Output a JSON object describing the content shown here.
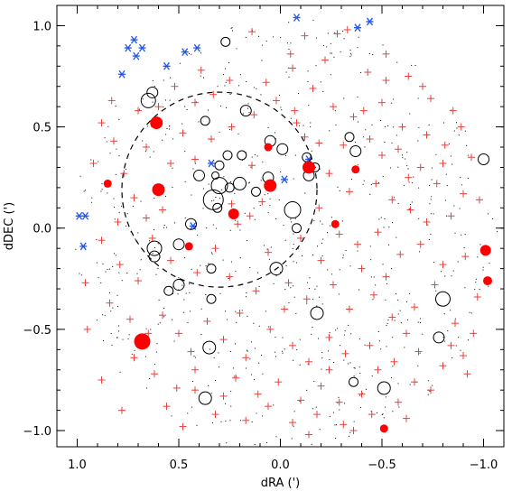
{
  "chart_data": {
    "type": "scatter",
    "title": "",
    "xlabel": "dRA (')",
    "ylabel": "dDEC (')",
    "xlim": [
      1.1,
      -1.1
    ],
    "ylim": [
      -1.08,
      1.1
    ],
    "x_ticks": [
      1.0,
      0.5,
      0.0,
      -0.5,
      -1.0
    ],
    "x_tick_labels": [
      "1.0",
      "0.5",
      "0.0",
      "−0.5",
      "−1.0"
    ],
    "y_ticks": [
      -1.0,
      -0.5,
      0.0,
      0.5,
      1.0
    ],
    "y_tick_labels": [
      "−1.0",
      "−0.5",
      "0.0",
      "0.5",
      "1.0"
    ],
    "grid": false,
    "legend": "none",
    "dashed_circle": {
      "center": [
        0.3,
        0.19
      ],
      "radius": 0.48
    },
    "colors": {
      "filled": "#ff0000",
      "plus": "#e8413b",
      "star": "#2255ee",
      "open": "#000000",
      "dot": "#000000"
    },
    "series": [
      {
        "marker": "filled-circle",
        "points": [
          {
            "x": 0.61,
            "y": 0.52,
            "s": 7
          },
          {
            "x": 0.6,
            "y": 0.19,
            "s": 7
          },
          {
            "x": 0.68,
            "y": -0.56,
            "s": 9
          },
          {
            "x": 0.85,
            "y": 0.22,
            "s": 4.5
          },
          {
            "x": 0.45,
            "y": -0.09,
            "s": 4.5
          },
          {
            "x": 0.23,
            "y": 0.07,
            "s": 6
          },
          {
            "x": 0.06,
            "y": 0.4,
            "s": 4.5
          },
          {
            "x": 0.05,
            "y": 0.21,
            "s": 7
          },
          {
            "x": -0.14,
            "y": 0.3,
            "s": 7
          },
          {
            "x": -0.27,
            "y": 0.02,
            "s": 4.5
          },
          {
            "x": -0.37,
            "y": 0.29,
            "s": 4.5
          },
          {
            "x": -0.51,
            "y": -0.99,
            "s": 4.5
          },
          {
            "x": -1.01,
            "y": -0.11,
            "s": 6
          },
          {
            "x": -1.02,
            "y": -0.26,
            "s": 5
          }
        ]
      },
      {
        "marker": "open-circle",
        "points": [
          {
            "x": 0.63,
            "y": 0.67,
            "s": 6
          },
          {
            "x": 0.65,
            "y": 0.63,
            "s": 8
          },
          {
            "x": 0.27,
            "y": 0.92,
            "s": 5
          },
          {
            "x": 0.37,
            "y": 0.53,
            "s": 5
          },
          {
            "x": 0.17,
            "y": 0.58,
            "s": 6
          },
          {
            "x": 0.05,
            "y": 0.43,
            "s": 6
          },
          {
            "x": 0.26,
            "y": 0.36,
            "s": 5
          },
          {
            "x": 0.19,
            "y": 0.36,
            "s": 5
          },
          {
            "x": -0.01,
            "y": 0.39,
            "s": 6
          },
          {
            "x": 0.3,
            "y": 0.31,
            "s": 5
          },
          {
            "x": 0.32,
            "y": 0.26,
            "s": 4
          },
          {
            "x": 0.4,
            "y": 0.26,
            "s": 6
          },
          {
            "x": 0.3,
            "y": 0.21,
            "s": 9
          },
          {
            "x": 0.33,
            "y": 0.14,
            "s": 11
          },
          {
            "x": 0.25,
            "y": 0.2,
            "s": 5
          },
          {
            "x": 0.2,
            "y": 0.22,
            "s": 7
          },
          {
            "x": 0.12,
            "y": 0.18,
            "s": 5
          },
          {
            "x": 0.06,
            "y": 0.25,
            "s": 6
          },
          {
            "x": 0.31,
            "y": 0.1,
            "s": 5
          },
          {
            "x": -0.06,
            "y": 0.09,
            "s": 9
          },
          {
            "x": -0.14,
            "y": 0.26,
            "s": 6
          },
          {
            "x": -0.17,
            "y": 0.3,
            "s": 5
          },
          {
            "x": 0.44,
            "y": 0.02,
            "s": 6
          },
          {
            "x": 0.5,
            "y": -0.08,
            "s": 6
          },
          {
            "x": 0.62,
            "y": -0.1,
            "s": 8
          },
          {
            "x": 0.62,
            "y": -0.14,
            "s": 6
          },
          {
            "x": 0.5,
            "y": -0.28,
            "s": 6
          },
          {
            "x": 0.55,
            "y": -0.31,
            "s": 5
          },
          {
            "x": 0.34,
            "y": -0.2,
            "s": 5
          },
          {
            "x": 0.34,
            "y": -0.35,
            "s": 5
          },
          {
            "x": 0.35,
            "y": -0.59,
            "s": 7
          },
          {
            "x": 0.37,
            "y": -0.84,
            "s": 7
          },
          {
            "x": 0.02,
            "y": -0.2,
            "s": 7
          },
          {
            "x": -0.08,
            "y": 0.0,
            "s": 5
          },
          {
            "x": -0.18,
            "y": -0.42,
            "s": 7
          },
          {
            "x": -0.34,
            "y": 0.45,
            "s": 5
          },
          {
            "x": -0.37,
            "y": 0.38,
            "s": 6
          },
          {
            "x": -0.36,
            "y": -0.76,
            "s": 5
          },
          {
            "x": -0.51,
            "y": -0.79,
            "s": 7
          },
          {
            "x": -1.0,
            "y": 0.34,
            "s": 6
          },
          {
            "x": -0.8,
            "y": -0.35,
            "s": 8
          },
          {
            "x": -0.78,
            "y": -0.54,
            "s": 6
          },
          {
            "x": -0.13,
            "y": 0.35,
            "s": 5
          }
        ]
      },
      {
        "marker": "asterisk",
        "points": [
          {
            "x": 0.75,
            "y": 0.89
          },
          {
            "x": 0.72,
            "y": 0.93
          },
          {
            "x": 0.71,
            "y": 0.85
          },
          {
            "x": 0.68,
            "y": 0.89
          },
          {
            "x": 0.78,
            "y": 0.76
          },
          {
            "x": 0.56,
            "y": 0.8
          },
          {
            "x": 0.47,
            "y": 0.87
          },
          {
            "x": 0.41,
            "y": 0.89
          },
          {
            "x": -0.08,
            "y": 1.04
          },
          {
            "x": -0.38,
            "y": 0.99
          },
          {
            "x": -0.44,
            "y": 1.02
          },
          {
            "x": 0.99,
            "y": 0.06
          },
          {
            "x": 0.96,
            "y": 0.06
          },
          {
            "x": 0.97,
            "y": -0.09
          },
          {
            "x": 0.34,
            "y": 0.32
          },
          {
            "x": -0.02,
            "y": 0.24
          },
          {
            "x": -0.14,
            "y": 0.34
          },
          {
            "x": 0.43,
            "y": 0.01
          }
        ]
      },
      {
        "marker": "plus",
        "points": [
          {
            "x": 0.14,
            "y": 0.97
          },
          {
            "x": -0.12,
            "y": 0.95
          },
          {
            "x": -0.28,
            "y": 0.96
          },
          {
            "x": -0.33,
            "y": 0.98
          },
          {
            "x": 0.83,
            "y": 0.63
          },
          {
            "x": 0.42,
            "y": 0.62
          },
          {
            "x": 0.25,
            "y": 0.73
          },
          {
            "x": 0.07,
            "y": 0.72
          },
          {
            "x": -0.06,
            "y": 0.79
          },
          {
            "x": -0.22,
            "y": 0.83
          },
          {
            "x": -0.43,
            "y": 0.77
          },
          {
            "x": -0.52,
            "y": 0.73
          },
          {
            "x": -0.63,
            "y": 0.75
          },
          {
            "x": -0.74,
            "y": 0.64
          },
          {
            "x": -0.85,
            "y": 0.58
          },
          {
            "x": -0.89,
            "y": 0.5
          },
          {
            "x": 0.48,
            "y": 0.47
          },
          {
            "x": 0.13,
            "y": 0.56
          },
          {
            "x": -0.07,
            "y": 0.58
          },
          {
            "x": -0.26,
            "y": 0.6
          },
          {
            "x": -0.36,
            "y": 0.55
          },
          {
            "x": -0.41,
            "y": 0.58
          },
          {
            "x": -0.5,
            "y": 0.62
          },
          {
            "x": -0.6,
            "y": 0.5
          },
          {
            "x": -0.72,
            "y": 0.46
          },
          {
            "x": -0.81,
            "y": 0.41
          },
          {
            "x": -0.94,
            "y": 0.35
          },
          {
            "x": 0.82,
            "y": 0.43
          },
          {
            "x": 0.66,
            "y": 0.4
          },
          {
            "x": 0.34,
            "y": 0.44
          },
          {
            "x": 0.24,
            "y": 0.5
          },
          {
            "x": -0.12,
            "y": 0.45
          },
          {
            "x": -0.19,
            "y": 0.42
          },
          {
            "x": -0.31,
            "y": 0.41
          },
          {
            "x": -0.44,
            "y": 0.44
          },
          {
            "x": -0.58,
            "y": 0.39
          },
          {
            "x": -0.69,
            "y": 0.3
          },
          {
            "x": -0.77,
            "y": 0.22
          },
          {
            "x": -0.9,
            "y": 0.17
          },
          {
            "x": -0.98,
            "y": 0.14
          },
          {
            "x": 0.92,
            "y": 0.32
          },
          {
            "x": 0.77,
            "y": 0.27
          },
          {
            "x": 0.54,
            "y": 0.32
          },
          {
            "x": 0.42,
            "y": 0.34
          },
          {
            "x": 0.14,
            "y": 0.31
          },
          {
            "x": -0.24,
            "y": 0.27
          },
          {
            "x": -0.34,
            "y": 0.18
          },
          {
            "x": -0.47,
            "y": 0.22
          },
          {
            "x": -0.55,
            "y": 0.14
          },
          {
            "x": -0.64,
            "y": 0.09
          },
          {
            "x": -0.72,
            "y": 0.03
          },
          {
            "x": -0.84,
            "y": 0.06
          },
          {
            "x": 0.72,
            "y": 0.15
          },
          {
            "x": 0.66,
            "y": 0.05
          },
          {
            "x": 0.58,
            "y": 0.09
          },
          {
            "x": 0.24,
            "y": 0.12
          },
          {
            "x": 0.15,
            "y": 0.06
          },
          {
            "x": 0.09,
            "y": 0.13
          },
          {
            "x": -0.19,
            "y": 0.1
          },
          {
            "x": -0.29,
            "y": -0.03
          },
          {
            "x": -0.38,
            "y": -0.08
          },
          {
            "x": -0.48,
            "y": -0.02
          },
          {
            "x": -0.59,
            "y": -0.13
          },
          {
            "x": -0.69,
            "y": -0.08
          },
          {
            "x": -0.8,
            "y": -0.18
          },
          {
            "x": -0.91,
            "y": -0.14
          },
          {
            "x": 0.88,
            "y": -0.06
          },
          {
            "x": 0.79,
            "y": -0.18
          },
          {
            "x": 0.7,
            "y": -0.26
          },
          {
            "x": 0.54,
            "y": -0.16
          },
          {
            "x": 0.41,
            "y": -0.22
          },
          {
            "x": 0.25,
            "y": -0.24
          },
          {
            "x": 0.12,
            "y": -0.31
          },
          {
            "x": -0.04,
            "y": -0.27
          },
          {
            "x": -0.13,
            "y": -0.35
          },
          {
            "x": -0.26,
            "y": -0.28
          },
          {
            "x": -0.34,
            "y": -0.4
          },
          {
            "x": -0.46,
            "y": -0.33
          },
          {
            "x": -0.55,
            "y": -0.44
          },
          {
            "x": -0.66,
            "y": -0.39
          },
          {
            "x": -0.76,
            "y": -0.28
          },
          {
            "x": -0.86,
            "y": -0.47
          },
          {
            "x": -0.97,
            "y": -0.34
          },
          {
            "x": 0.96,
            "y": -0.27
          },
          {
            "x": 0.84,
            "y": -0.37
          },
          {
            "x": 0.74,
            "y": -0.45
          },
          {
            "x": 0.58,
            "y": -0.43
          },
          {
            "x": 0.5,
            "y": -0.52
          },
          {
            "x": 0.44,
            "y": -0.61
          },
          {
            "x": 0.28,
            "y": -0.55
          },
          {
            "x": 0.17,
            "y": -0.64
          },
          {
            "x": 0.05,
            "y": -0.5
          },
          {
            "x": -0.06,
            "y": -0.58
          },
          {
            "x": -0.14,
            "y": -0.66
          },
          {
            "x": -0.24,
            "y": -0.54
          },
          {
            "x": -0.32,
            "y": -0.62
          },
          {
            "x": -0.44,
            "y": -0.58
          },
          {
            "x": -0.56,
            "y": -0.66
          },
          {
            "x": -0.68,
            "y": -0.61
          },
          {
            "x": -0.8,
            "y": -0.68
          },
          {
            "x": -0.9,
            "y": -0.63
          },
          {
            "x": -0.95,
            "y": -0.52
          },
          {
            "x": 0.72,
            "y": -0.64
          },
          {
            "x": 0.62,
            "y": -0.72
          },
          {
            "x": 0.51,
            "y": -0.79
          },
          {
            "x": 0.42,
            "y": -0.7
          },
          {
            "x": 0.22,
            "y": -0.74
          },
          {
            "x": 0.11,
            "y": -0.82
          },
          {
            "x": 0.01,
            "y": -0.76
          },
          {
            "x": -0.1,
            "y": -0.85
          },
          {
            "x": -0.2,
            "y": -0.78
          },
          {
            "x": -0.29,
            "y": -0.86
          },
          {
            "x": -0.4,
            "y": -0.82
          },
          {
            "x": -0.58,
            "y": -0.86
          },
          {
            "x": -0.66,
            "y": -0.76
          },
          {
            "x": -0.74,
            "y": -0.8
          },
          {
            "x": 0.56,
            "y": -0.88
          },
          {
            "x": 0.32,
            "y": -0.92
          },
          {
            "x": 0.17,
            "y": -0.95
          },
          {
            "x": 0.06,
            "y": -0.88
          },
          {
            "x": -0.06,
            "y": -0.96
          },
          {
            "x": -0.18,
            "y": -0.92
          },
          {
            "x": -0.31,
            "y": -0.97
          },
          {
            "x": -0.45,
            "y": -0.92
          },
          {
            "x": -0.62,
            "y": -0.94
          },
          {
            "x": 0.78,
            "y": -0.9
          },
          {
            "x": 0.88,
            "y": -0.75
          },
          {
            "x": 0.33,
            "y": 0.66
          },
          {
            "x": 0.02,
            "y": 0.63
          },
          {
            "x": -0.16,
            "y": 0.69
          },
          {
            "x": 0.6,
            "y": 0.6
          },
          {
            "x": 0.52,
            "y": 0.7
          },
          {
            "x": 0.39,
            "y": 0.78
          },
          {
            "x": -0.05,
            "y": 0.86
          },
          {
            "x": -0.52,
            "y": 0.86
          },
          {
            "x": -0.7,
            "y": 0.7
          },
          {
            "x": 0.7,
            "y": 0.58
          },
          {
            "x": 0.88,
            "y": 0.52
          },
          {
            "x": -0.8,
            "y": 0.32
          },
          {
            "x": -0.63,
            "y": 0.25
          },
          {
            "x": -0.5,
            "y": 0.36
          },
          {
            "x": -0.08,
            "y": 0.52
          },
          {
            "x": 0.21,
            "y": 0.02
          },
          {
            "x": -0.1,
            "y": -0.05
          },
          {
            "x": -0.2,
            "y": -0.16
          },
          {
            "x": 0.06,
            "y": -0.12
          },
          {
            "x": 0.32,
            "y": -0.1
          },
          {
            "x": 0.63,
            "y": -0.05
          },
          {
            "x": 0.8,
            "y": 0.03
          },
          {
            "x": -0.4,
            "y": -0.2
          },
          {
            "x": -0.52,
            "y": -0.24
          },
          {
            "x": -0.62,
            "y": -0.52
          },
          {
            "x": -0.84,
            "y": -0.58
          },
          {
            "x": -0.92,
            "y": -0.72
          },
          {
            "x": 0.95,
            "y": -0.5
          },
          {
            "x": 0.65,
            "y": -0.52
          },
          {
            "x": 0.36,
            "y": -0.46
          },
          {
            "x": 0.2,
            "y": -0.42
          },
          {
            "x": -0.02,
            "y": -0.4
          },
          {
            "x": 0.42,
            "y": -0.8
          },
          {
            "x": 0.28,
            "y": -0.83
          },
          {
            "x": -0.24,
            "y": -0.7
          },
          {
            "x": -0.48,
            "y": -0.7
          },
          {
            "x": 0.48,
            "y": -0.98
          },
          {
            "x": -0.14,
            "y": -1.02
          },
          {
            "x": -0.36,
            "y": -1.0
          }
        ]
      }
    ],
    "background_dots": 700
  }
}
